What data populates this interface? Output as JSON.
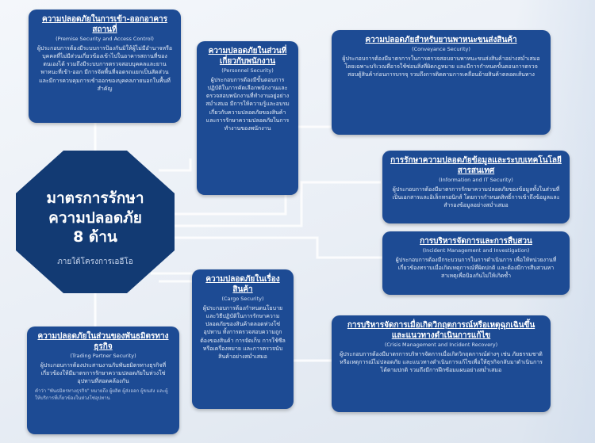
{
  "center": {
    "line1": "มาตรการรักษา",
    "line2": "ความปลอดภัย",
    "line3": "8 ด้าน",
    "subtitle": "ภายใต้โครงการเออีโอ"
  },
  "boxes": [
    {
      "id": "access",
      "title": "ความปลอดภัยในการเข้า-ออกอาคารสถานที่",
      "subtitle": "(Premise Security and Access Control)",
      "body": "ผู้ประกอบการต้องมีระบบการป้องกันมิให้ผู้ไม่มีอำนาจหรือบุคคลที่ไม่มีส่วนเกี่ยวข้องเข้าไปในอาคารสถานที่ของตนเองได้ รวมถึงมีระบบการตรวจสอบบุคคลและยานพาหนะที่เข้า-ออก มีการจัดพื้นที่จอดรถแยกเป็นสัดส่วน และมีการควบคุมการเข้าออกของบุคคลภายนอกในพื้นที่สำคัญ"
    },
    {
      "id": "personnel",
      "title": "ความปลอดภัยในส่วนที่เกี่ยวกับพนักงาน",
      "subtitle": "(Personnel Security)",
      "body": "ผู้ประกอบการต้องมีขั้นตอนการปฏิบัติในการคัดเลือกพนักงานและตรวจสอบพนักงานที่ทำงานอยู่อย่างสม่ำเสมอ มีการให้ความรู้และอบรมเกี่ยวกับความปลอดภัยของสินค้า และการรักษาความปลอดภัยในการทำงานของพนักงาน"
    },
    {
      "id": "conveyance",
      "title": "ความปลอดภัยสำหรับยานพาหนะขนส่งสินค้า",
      "subtitle": "(Conveyance Security)",
      "body": "ผู้ประกอบการต้องมีมาตรการในการตรวจสอบยานพาหนะขนส่งสินค้าอย่างสม่ำเสมอ โดยเฉพาะบริเวณที่อาจใช้ซ่อนสิ่งที่ผิดกฎหมาย และมีการกำหนดขั้นตอนการตรวจสอบตู้สินค้าก่อนการบรรจุ รวมถึงการติดตามการเคลื่อนย้ายสินค้าตลอดเส้นทาง"
    },
    {
      "id": "info",
      "title": "การรักษาความปลอดภัยข้อมูลและระบบเทคโนโลยีสารสนเทศ",
      "subtitle": "(Information and IT Security)",
      "body": "ผู้ประกอบการต้องมีมาตรการรักษาความปลอดภัยของข้อมูลทั้งในส่วนที่เป็นเอกสารและอิเล็กทรอนิกส์ โดยการกำหนดสิทธิ์การเข้าถึงข้อมูลและสำรองข้อมูลอย่างสม่ำเสมอ"
    },
    {
      "id": "incident",
      "title": "การบริหารจัดการและการสืบสวน",
      "subtitle": "(Incident Management and Investigation)",
      "body": "ผู้ประกอบการต้องมีกระบวนการในการดำเนินการ เพื่อให้หน่วยงานที่เกี่ยวข้องทราบเมื่อเกิดเหตุการณ์ที่ผิดปกติ และต้องมีการสืบสวนหาสาเหตุเพื่อป้องกันไม่ให้เกิดซ้ำ"
    },
    {
      "id": "cargo",
      "title": "ความปลอดภัยในเรื่องสินค้า",
      "subtitle": "(Cargo Security)",
      "body": "ผู้ประกอบการต้องกำหนดนโยบายและวิธีปฏิบัติในการรักษาความปลอดภัยของสินค้าตลอดห่วงโซ่อุปทาน ทั้งการตรวจสอบความถูกต้องของสินค้า การจัดเก็บ การใช้ซีลหรือเครื่องหมาย และการตรวจนับสินค้าอย่างสม่ำเสมอ"
    },
    {
      "id": "trading",
      "title": "ความปลอดภัยในส่วนของพันธมิตรทางธุรกิจ",
      "subtitle": "(Trading Partner Security)",
      "body": "ผู้ประกอบการต้องประสานงานกับพันธมิตรทางธุรกิจที่เกี่ยวข้องให้มีมาตรการรักษาความปลอดภัยในห่วงโซ่อุปทานที่สอดคล้องกัน",
      "note": "คำว่า \"พันธมิตรทางธุรกิจ\" หมายถึง ผู้ผลิต ผู้ส่งออก ผู้ขนส่ง และผู้ให้บริการที่เกี่ยวข้องในห่วงโซ่อุปทาน"
    },
    {
      "id": "crisis",
      "title": "การบริหารจัดการเมื่อเกิดวิกฤตการณ์หรือเหตุฉุกเฉินขึ้น และแนวทางดำเนินการแก้ไข",
      "subtitle": "(Crisis Management and Incident Recovery)",
      "body": "ผู้ประกอบการต้องมีมาตรการบริหารจัดการเมื่อเกิดวิกฤตการณ์ต่างๆ เช่น ภัยธรรมชาติ หรือเหตุการณ์ไม่ปลอดภัย และแนวทางดำเนินการแก้ไขเพื่อให้ธุรกิจกลับมาดำเนินการได้ตามปกติ รวมถึงมีการฝึกซ้อมแผนอย่างสม่ำเสมอ"
    }
  ]
}
